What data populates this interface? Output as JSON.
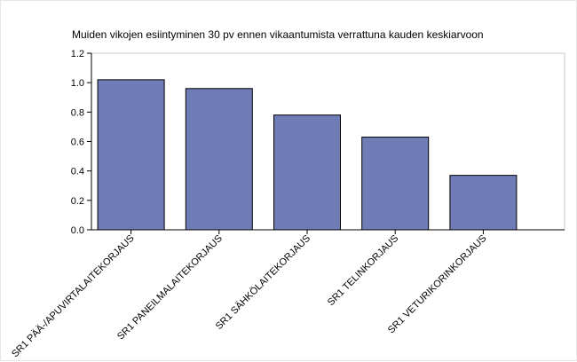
{
  "chart_data": {
    "type": "bar",
    "title": "Muiden vikojen esiintyminen 30 pv ennen vikaantumista verrattuna kauden keskiarvoon",
    "categories": [
      "SR1 PÄÄ-/APUVIRTALAITEKORJAUS",
      "SR1 PANEILMALAITEKORJAUS",
      "SR1 SÄHKÖLAITEKORJAUS",
      "SR1 TELINKORJAUS",
      "SR1 VETURIKORINKORJAUS"
    ],
    "values": [
      1.02,
      0.96,
      0.78,
      0.63,
      0.37
    ],
    "ylim": [
      0,
      1.2
    ],
    "yticks": [
      "0.0",
      "0.2",
      "0.4",
      "0.6",
      "0.8",
      "1.0",
      "1.2"
    ],
    "xlabel": "",
    "ylabel": "",
    "bar_color": "#6f7cb6",
    "bar_outline": "#000000",
    "grid": false,
    "legend": "none"
  }
}
